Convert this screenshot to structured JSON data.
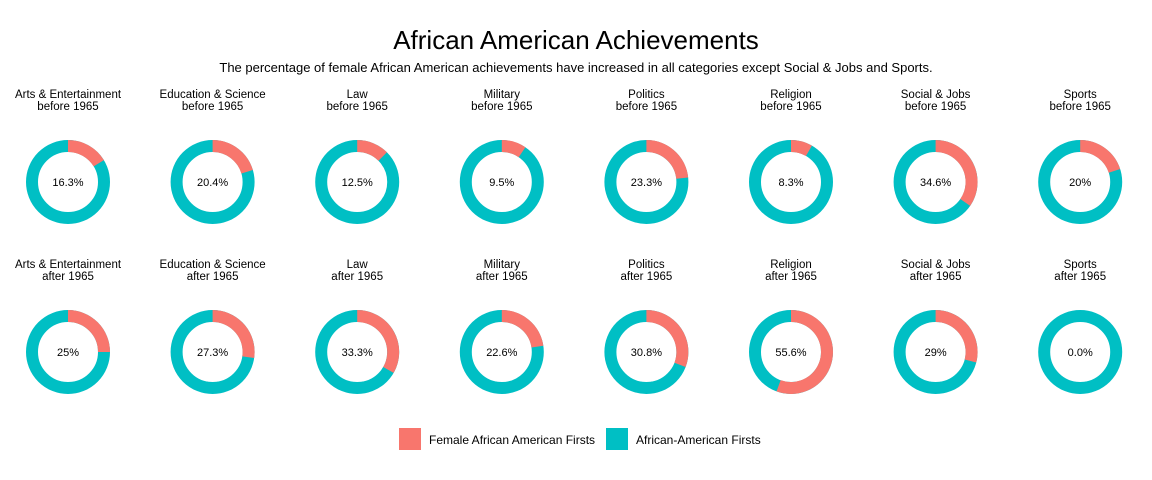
{
  "colors": {
    "female": "#F8766D",
    "overall": "#00BFC4"
  },
  "chart_data": {
    "type": "pie",
    "variant": "donut-facets",
    "title": "African American Achievements",
    "subtitle": "The percentage of female African American achievements have increased in all categories except Social & Jobs and Sports.",
    "legend": {
      "placement": "bottom",
      "entries": [
        "Female African American Firsts",
        "African-American Firsts"
      ]
    },
    "rows": [
      {
        "period": "before 1965",
        "facets": [
          {
            "category": "Arts & Entertainment",
            "period": "before 1965",
            "female_pct": 16.3,
            "label": "16.3%"
          },
          {
            "category": "Education & Science",
            "period": "before 1965",
            "female_pct": 20.4,
            "label": "20.4%"
          },
          {
            "category": "Law",
            "period": "before 1965",
            "female_pct": 12.5,
            "label": "12.5%"
          },
          {
            "category": "Military",
            "period": "before 1965",
            "female_pct": 9.5,
            "label": "9.5%"
          },
          {
            "category": "Politics",
            "period": "before 1965",
            "female_pct": 23.3,
            "label": "23.3%"
          },
          {
            "category": "Religion",
            "period": "before 1965",
            "female_pct": 8.3,
            "label": "8.3%"
          },
          {
            "category": "Social & Jobs",
            "period": "before 1965",
            "female_pct": 34.6,
            "label": "34.6%"
          },
          {
            "category": "Sports",
            "period": "before 1965",
            "female_pct": 20,
            "label": "20%"
          }
        ]
      },
      {
        "period": "after 1965",
        "facets": [
          {
            "category": "Arts & Entertainment",
            "period": "after 1965",
            "female_pct": 25,
            "label": "25%"
          },
          {
            "category": "Education & Science",
            "period": "after 1965",
            "female_pct": 27.3,
            "label": "27.3%"
          },
          {
            "category": "Law",
            "period": "after 1965",
            "female_pct": 33.3,
            "label": "33.3%"
          },
          {
            "category": "Military",
            "period": "after 1965",
            "female_pct": 22.6,
            "label": "22.6%"
          },
          {
            "category": "Politics",
            "period": "after 1965",
            "female_pct": 30.8,
            "label": "30.8%"
          },
          {
            "category": "Religion",
            "period": "after 1965",
            "female_pct": 55.6,
            "label": "55.6%"
          },
          {
            "category": "Social & Jobs",
            "period": "after 1965",
            "female_pct": 29,
            "label": "29%"
          },
          {
            "category": "Sports",
            "period": "after 1965",
            "female_pct": 0,
            "label": "0.0%"
          }
        ]
      }
    ]
  }
}
